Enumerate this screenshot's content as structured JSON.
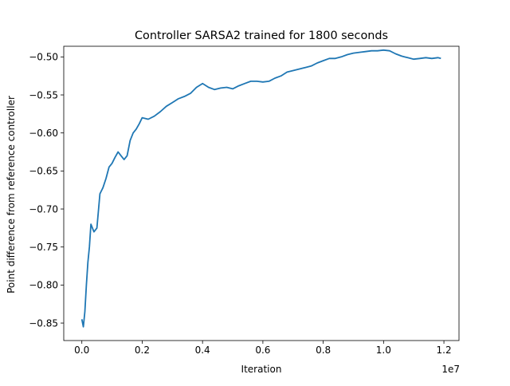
{
  "chart_data": {
    "type": "line",
    "title": "Controller SARSA2 trained for 1800 seconds",
    "xlabel": "Iteration",
    "ylabel": "Point difference from reference controller",
    "x_offset_label": "1e7",
    "xlim": [
      -0.06,
      1.25
    ],
    "ylim": [
      -0.873,
      -0.486
    ],
    "xticks": [
      {
        "value": 0.0,
        "label": "0.0"
      },
      {
        "value": 0.2,
        "label": "0.2"
      },
      {
        "value": 0.4,
        "label": "0.4"
      },
      {
        "value": 0.6,
        "label": "0.6"
      },
      {
        "value": 0.8,
        "label": "0.8"
      },
      {
        "value": 1.0,
        "label": "1.0"
      },
      {
        "value": 1.2,
        "label": "1.2"
      }
    ],
    "yticks": [
      {
        "value": -0.85,
        "label": "−0.85"
      },
      {
        "value": -0.8,
        "label": "−0.80"
      },
      {
        "value": -0.75,
        "label": "−0.75"
      },
      {
        "value": -0.7,
        "label": "−0.70"
      },
      {
        "value": -0.65,
        "label": "−0.65"
      },
      {
        "value": -0.6,
        "label": "−0.60"
      },
      {
        "value": -0.55,
        "label": "−0.55"
      },
      {
        "value": -0.5,
        "label": "−0.50"
      }
    ],
    "grid": false,
    "line_color": "#1f77b4",
    "series": [
      {
        "x": [
          0.0,
          0.005,
          0.01,
          0.015,
          0.02,
          0.025,
          0.03,
          0.04,
          0.05,
          0.06,
          0.07,
          0.08,
          0.09,
          0.1,
          0.11,
          0.12,
          0.13,
          0.14,
          0.15,
          0.16,
          0.17,
          0.18,
          0.19,
          0.2,
          0.22,
          0.24,
          0.26,
          0.28,
          0.3,
          0.32,
          0.34,
          0.36,
          0.38,
          0.4,
          0.42,
          0.44,
          0.46,
          0.48,
          0.5,
          0.52,
          0.54,
          0.56,
          0.58,
          0.6,
          0.62,
          0.64,
          0.66,
          0.68,
          0.7,
          0.72,
          0.74,
          0.76,
          0.78,
          0.8,
          0.82,
          0.84,
          0.86,
          0.88,
          0.9,
          0.92,
          0.94,
          0.96,
          0.98,
          1.0,
          1.02,
          1.04,
          1.06,
          1.08,
          1.1,
          1.12,
          1.14,
          1.16,
          1.18,
          1.19
        ],
        "y": [
          -0.845,
          -0.855,
          -0.835,
          -0.8,
          -0.77,
          -0.75,
          -0.72,
          -0.73,
          -0.725,
          -0.68,
          -0.672,
          -0.66,
          -0.645,
          -0.64,
          -0.632,
          -0.625,
          -0.63,
          -0.635,
          -0.63,
          -0.61,
          -0.6,
          -0.595,
          -0.588,
          -0.58,
          -0.582,
          -0.578,
          -0.572,
          -0.565,
          -0.56,
          -0.555,
          -0.552,
          -0.548,
          -0.54,
          -0.535,
          -0.54,
          -0.543,
          -0.541,
          -0.54,
          -0.542,
          -0.538,
          -0.535,
          -0.532,
          -0.532,
          -0.533,
          -0.532,
          -0.528,
          -0.525,
          -0.52,
          -0.518,
          -0.516,
          -0.514,
          -0.512,
          -0.508,
          -0.505,
          -0.502,
          -0.502,
          -0.5,
          -0.497,
          -0.495,
          -0.494,
          -0.493,
          -0.492,
          -0.492,
          -0.491,
          -0.492,
          -0.496,
          -0.499,
          -0.501,
          -0.503,
          -0.502,
          -0.501,
          -0.502,
          -0.501,
          -0.502
        ]
      }
    ]
  }
}
